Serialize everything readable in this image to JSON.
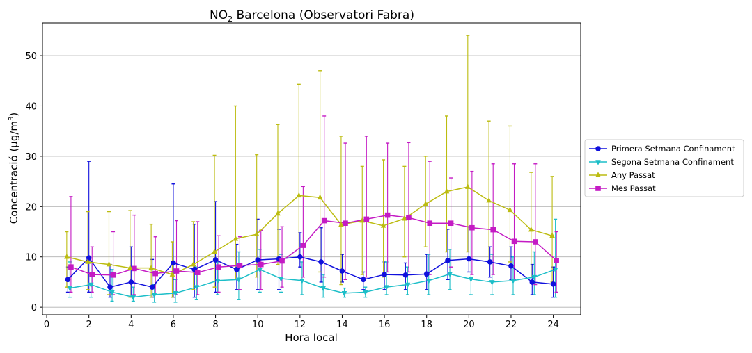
{
  "chart_data": {
    "type": "line",
    "title": {
      "main": "NO",
      "sub": "2",
      "rest": " Barcelona (Observatori Fabra)"
    },
    "xlabel": "Hora local",
    "ylabel": {
      "main": "Concentració (μg/m",
      "sup": "3",
      "end": ")"
    },
    "xlim": [
      -0.2,
      25.3
    ],
    "ylim": [
      -1.5,
      56.5
    ],
    "xticks": [
      0,
      2,
      4,
      6,
      8,
      10,
      12,
      14,
      16,
      18,
      20,
      22,
      24
    ],
    "yticks": [
      0,
      10,
      20,
      30,
      40,
      50
    ],
    "grid": "horizontal",
    "legend_position": "outside-right",
    "x": [
      1,
      2,
      3,
      4,
      5,
      6,
      7,
      8,
      9,
      10,
      11,
      12,
      13,
      14,
      15,
      16,
      17,
      18,
      19,
      20,
      21,
      22,
      23,
      24
    ],
    "series": [
      {
        "name": "Primera Setmana Confinament",
        "color": "#1010dd",
        "marker": "circle",
        "offset": 0,
        "values": [
          5.5,
          9.8,
          4.0,
          5.0,
          4.0,
          8.8,
          7.5,
          9.4,
          7.5,
          9.4,
          9.6,
          10.0,
          9.0,
          7.2,
          5.5,
          6.5,
          6.4,
          6.6,
          9.3,
          9.6,
          9.0,
          8.2,
          5.0,
          4.6
        ],
        "err_low": [
          3.0,
          3.0,
          2.0,
          2.0,
          2.0,
          2.0,
          2.0,
          3.0,
          3.5,
          3.5,
          3.5,
          8.0,
          5.0,
          5.0,
          3.5,
          3.5,
          3.5,
          3.5,
          5.5,
          7.0,
          6.0,
          5.5,
          2.5,
          2.0
        ],
        "err_high": [
          8.0,
          29.0,
          8.5,
          12.0,
          9.5,
          24.5,
          16.5,
          21.0,
          12.5,
          17.5,
          15.5,
          14.8,
          15.8,
          10.5,
          7.0,
          9.0,
          8.8,
          10.5,
          15.5,
          16.0,
          12.0,
          12.0,
          8.5,
          8.0
        ]
      },
      {
        "name": "Segona Setmana Confinament",
        "color": "#1cbec8",
        "marker": "triangle-down",
        "offset": 0.1,
        "values": [
          3.8,
          4.5,
          3.0,
          2.0,
          2.5,
          2.8,
          4.0,
          5.3,
          5.5,
          7.5,
          5.7,
          5.3,
          3.8,
          2.8,
          3.0,
          4.0,
          4.5,
          5.3,
          6.6,
          5.6,
          5.0,
          5.3,
          6.0,
          7.5
        ],
        "err_low": [
          2.0,
          2.0,
          1.2,
          1.2,
          1.0,
          1.0,
          1.5,
          2.5,
          1.5,
          3.0,
          3.0,
          2.5,
          2.0,
          2.0,
          2.0,
          2.5,
          2.5,
          2.5,
          3.5,
          2.5,
          2.5,
          2.5,
          2.5,
          2.0
        ],
        "err_high": [
          9.0,
          9.0,
          7.5,
          4.0,
          4.5,
          5.5,
          8.0,
          9.0,
          11.0,
          11.5,
          10.5,
          9.0,
          6.5,
          3.8,
          4.0,
          9.0,
          8.0,
          10.5,
          11.5,
          15.5,
          10.5,
          10.0,
          11.0,
          17.5
        ]
      },
      {
        "name": "Any Passat",
        "color": "#bcbc10",
        "marker": "triangle-up",
        "offset": -0.05,
        "values": [
          10.0,
          9.0,
          8.5,
          7.8,
          7.8,
          6.5,
          8.5,
          11.0,
          13.6,
          14.5,
          18.6,
          22.2,
          21.8,
          16.4,
          17.2,
          16.2,
          17.6,
          20.5,
          23.0,
          23.9,
          21.2,
          19.3,
          15.4,
          14.2
        ],
        "err_low": [
          4.0,
          3.5,
          2.5,
          2.0,
          2.0,
          2.0,
          3.5,
          4.0,
          5.5,
          6.0,
          8.5,
          10.0,
          7.0,
          4.5,
          6.5,
          6.0,
          10.0,
          12.0,
          11.0,
          11.0,
          9.0,
          9.0,
          6.0,
          5.0
        ],
        "err_high": [
          15.0,
          19.0,
          19.0,
          19.2,
          16.5,
          13.0,
          17.0,
          30.2,
          40.0,
          30.3,
          36.3,
          44.3,
          47.0,
          34.0,
          28.0,
          29.3,
          28.0,
          30.0,
          38.0,
          54.0,
          37.0,
          36.0,
          26.8,
          26.0
        ]
      },
      {
        "name": "Mes Passat",
        "color": "#c41bc4",
        "marker": "square",
        "offset": 0.15,
        "values": [
          8.0,
          6.5,
          6.4,
          7.7,
          6.7,
          7.2,
          6.9,
          8.0,
          8.3,
          8.5,
          9.2,
          12.3,
          17.2,
          16.7,
          17.5,
          18.3,
          17.8,
          16.7,
          16.7,
          15.8,
          15.4,
          13.1,
          13.0,
          9.3
        ],
        "err_low": [
          3.0,
          3.0,
          2.5,
          2.5,
          2.5,
          2.5,
          2.5,
          3.0,
          3.5,
          3.5,
          4.0,
          6.0,
          6.0,
          5.5,
          6.0,
          7.0,
          7.0,
          6.5,
          8.0,
          6.5,
          6.5,
          5.5,
          4.5,
          3.0
        ],
        "err_high": [
          22.0,
          12.0,
          15.0,
          18.3,
          14.0,
          17.2,
          17.0,
          14.2,
          14.0,
          15.3,
          16.0,
          24.0,
          38.0,
          32.6,
          34.0,
          32.6,
          32.7,
          29.0,
          25.7,
          27.0,
          28.5,
          28.5,
          28.5,
          15.0
        ]
      }
    ]
  }
}
